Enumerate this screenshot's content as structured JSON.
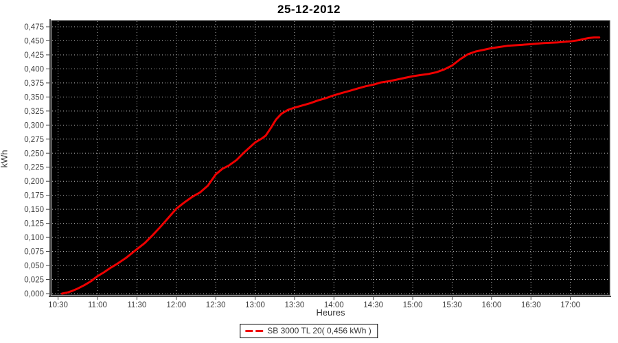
{
  "chart_data": {
    "type": "line",
    "title": "25-12-2012",
    "xlabel": "Heures",
    "ylabel": "kWh",
    "legend_position": "bottom-center",
    "grid": "dotted",
    "plot_bg": "#000000",
    "colors": {
      "series": "#ee0000",
      "grid": "#bdbdbd",
      "tick_text": "#3d3d3d",
      "axis": "#444444"
    },
    "x_ticks": [
      "10:30",
      "11:00",
      "11:30",
      "12:00",
      "12:30",
      "13:00",
      "13:30",
      "14:00",
      "14:30",
      "15:00",
      "15:30",
      "16:00",
      "16:30",
      "17:00"
    ],
    "x_range": [
      "10:25",
      "17:30"
    ],
    "y_ticks": [
      {
        "value": 0.0,
        "label": "0,000"
      },
      {
        "value": 0.025,
        "label": "0,025"
      },
      {
        "value": 0.05,
        "label": "0,050"
      },
      {
        "value": 0.075,
        "label": "0,075"
      },
      {
        "value": 0.1,
        "label": "0,100"
      },
      {
        "value": 0.125,
        "label": "0,125"
      },
      {
        "value": 0.15,
        "label": "0,150"
      },
      {
        "value": 0.175,
        "label": "0,175"
      },
      {
        "value": 0.2,
        "label": "0,200"
      },
      {
        "value": 0.225,
        "label": "0,225"
      },
      {
        "value": 0.25,
        "label": "0,250"
      },
      {
        "value": 0.275,
        "label": "0,275"
      },
      {
        "value": 0.3,
        "label": "0,300"
      },
      {
        "value": 0.325,
        "label": "0,325"
      },
      {
        "value": 0.35,
        "label": "0,350"
      },
      {
        "value": 0.375,
        "label": "0,375"
      },
      {
        "value": 0.4,
        "label": "0,400"
      },
      {
        "value": 0.425,
        "label": "0,425"
      },
      {
        "value": 0.45,
        "label": "0,450"
      },
      {
        "value": 0.475,
        "label": "0,475"
      }
    ],
    "ylim": [
      0,
      0.475
    ],
    "series": [
      {
        "name": "SB 3000 TL 20( 0,456 kWh )",
        "final_value_kwh": "0,456",
        "points": [
          [
            "10:33",
            0.0
          ],
          [
            "10:37",
            0.002
          ],
          [
            "10:41",
            0.005
          ],
          [
            "10:45",
            0.009
          ],
          [
            "10:50",
            0.015
          ],
          [
            "10:55",
            0.022
          ],
          [
            "11:00",
            0.031
          ],
          [
            "11:05",
            0.038
          ],
          [
            "11:10",
            0.046
          ],
          [
            "11:15",
            0.053
          ],
          [
            "11:22",
            0.064
          ],
          [
            "11:30",
            0.079
          ],
          [
            "11:36",
            0.09
          ],
          [
            "11:42",
            0.104
          ],
          [
            "11:48",
            0.119
          ],
          [
            "11:54",
            0.135
          ],
          [
            "12:00",
            0.151
          ],
          [
            "12:06",
            0.162
          ],
          [
            "12:12",
            0.172
          ],
          [
            "12:18",
            0.18
          ],
          [
            "12:24",
            0.192
          ],
          [
            "12:30",
            0.212
          ],
          [
            "12:35",
            0.222
          ],
          [
            "12:40",
            0.228
          ],
          [
            "12:46",
            0.238
          ],
          [
            "12:52",
            0.252
          ],
          [
            "13:00",
            0.269
          ],
          [
            "13:05",
            0.276
          ],
          [
            "13:08",
            0.281
          ],
          [
            "13:12",
            0.295
          ],
          [
            "13:16",
            0.31
          ],
          [
            "13:20",
            0.32
          ],
          [
            "13:25",
            0.327
          ],
          [
            "13:30",
            0.331
          ],
          [
            "13:36",
            0.335
          ],
          [
            "13:42",
            0.339
          ],
          [
            "13:48",
            0.344
          ],
          [
            "13:54",
            0.348
          ],
          [
            "14:00",
            0.353
          ],
          [
            "14:06",
            0.357
          ],
          [
            "14:12",
            0.361
          ],
          [
            "14:18",
            0.365
          ],
          [
            "14:24",
            0.369
          ],
          [
            "14:30",
            0.372
          ],
          [
            "14:36",
            0.376
          ],
          [
            "14:42",
            0.378
          ],
          [
            "14:48",
            0.381
          ],
          [
            "14:54",
            0.384
          ],
          [
            "15:00",
            0.387
          ],
          [
            "15:06",
            0.389
          ],
          [
            "15:12",
            0.391
          ],
          [
            "15:18",
            0.394
          ],
          [
            "15:24",
            0.399
          ],
          [
            "15:30",
            0.406
          ],
          [
            "15:36",
            0.417
          ],
          [
            "15:42",
            0.426
          ],
          [
            "15:48",
            0.431
          ],
          [
            "15:54",
            0.434
          ],
          [
            "16:00",
            0.437
          ],
          [
            "16:06",
            0.439
          ],
          [
            "16:12",
            0.441
          ],
          [
            "16:18",
            0.442
          ],
          [
            "16:24",
            0.443
          ],
          [
            "16:30",
            0.444
          ],
          [
            "16:40",
            0.446
          ],
          [
            "16:50",
            0.447
          ],
          [
            "17:00",
            0.449
          ],
          [
            "17:06",
            0.451
          ],
          [
            "17:10",
            0.453
          ],
          [
            "17:14",
            0.455
          ],
          [
            "17:18",
            0.456
          ],
          [
            "17:22",
            0.456
          ]
        ]
      }
    ]
  }
}
